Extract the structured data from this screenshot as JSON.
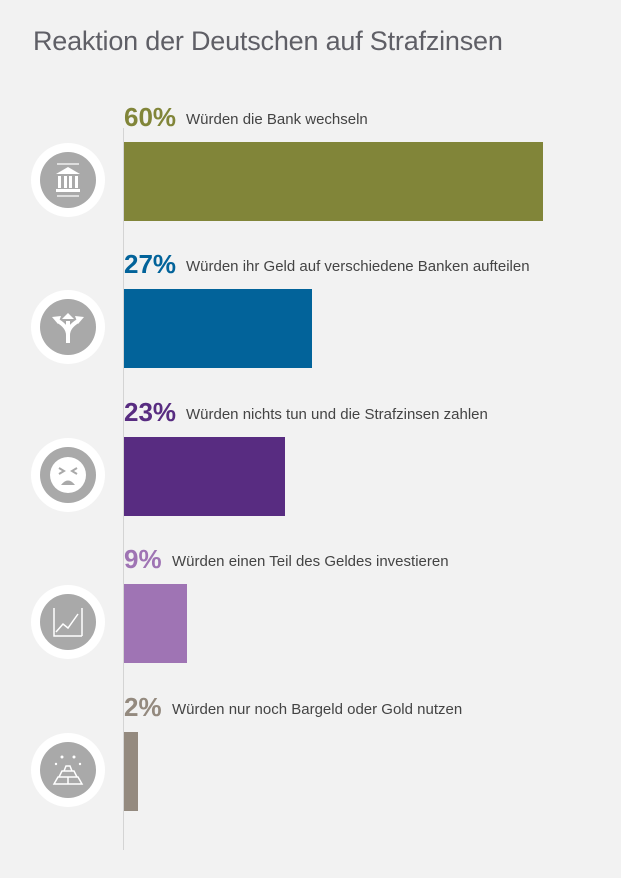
{
  "chart_data": {
    "type": "bar",
    "orientation": "horizontal",
    "title": "Reaktion der Deutschen auf Strafzinsen",
    "unit": "%",
    "xlim": [
      0,
      60
    ],
    "items": [
      {
        "value": 60,
        "pct_label": "60%",
        "label": "Würden die Bank wechseln",
        "color": "#818539",
        "icon": "bank-icon"
      },
      {
        "value": 27,
        "pct_label": "27%",
        "label": "Würden ihr Geld auf verschiedene Banken aufteilen",
        "color": "#02639a",
        "icon": "split-arrows-icon"
      },
      {
        "value": 23,
        "pct_label": "23%",
        "label": "Würden nichts tun und die Strafzinsen zahlen",
        "color": "#582c81",
        "icon": "frustrated-face-icon"
      },
      {
        "value": 9,
        "pct_label": "9%",
        "label": "Würden einen Teil des Geldes investieren",
        "color": "#9f74b4",
        "icon": "investment-chart-icon"
      },
      {
        "value": 2,
        "pct_label": "2%",
        "label": "Würden nur noch Bargeld oder Gold nutzen",
        "color": "#948a7f",
        "icon": "gold-bars-icon"
      }
    ]
  }
}
